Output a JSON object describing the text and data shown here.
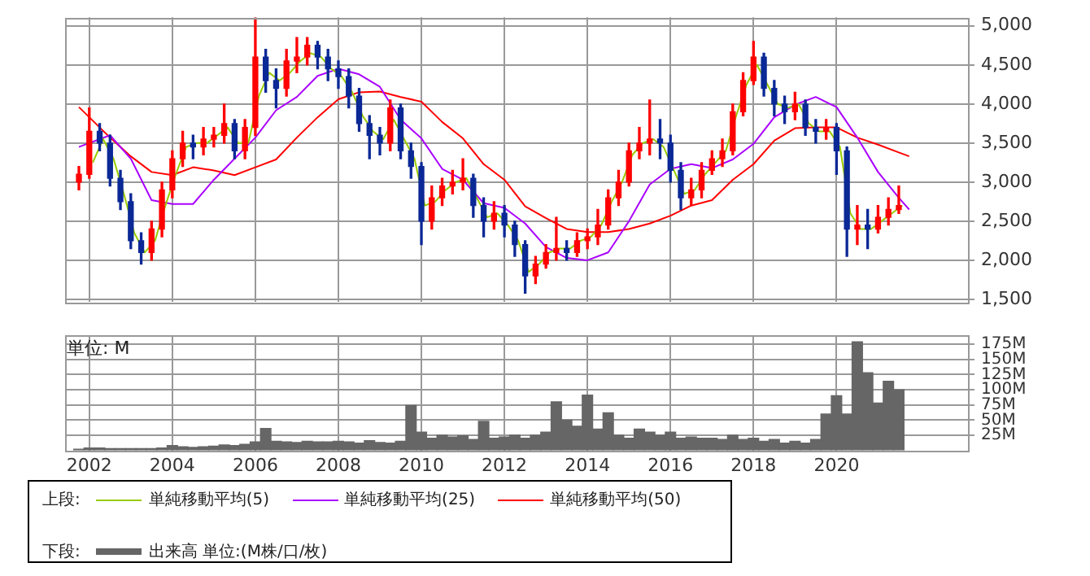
{
  "chart_data": [
    {
      "type": "candlestick",
      "legend_title": "上段:",
      "legend": "bottom",
      "grid": true,
      "tick_labels": "y",
      "marker": "none",
      "xlim": [
        "2001-06",
        "2023-03"
      ],
      "xticks": [
        {
          "value": "2002",
          "label": null
        },
        {
          "value": "2004",
          "label": null
        },
        {
          "value": "2006",
          "label": null
        },
        {
          "value": "2008",
          "label": null
        },
        {
          "value": "2010",
          "label": null
        },
        {
          "value": "2012",
          "label": null
        },
        {
          "value": "2014",
          "label": null
        },
        {
          "value": "2016",
          "label": null
        },
        {
          "value": "2018",
          "label": null
        },
        {
          "value": "2020",
          "label": null
        }
      ],
      "ylim": [
        1470,
        5110
      ],
      "yticks": [
        {
          "value": 1500,
          "label": "1,500"
        },
        {
          "value": 2000,
          "label": "2,000"
        },
        {
          "value": 2500,
          "label": "2,500"
        },
        {
          "value": 3000,
          "label": "3,000"
        },
        {
          "value": 3500,
          "label": "3,500"
        },
        {
          "value": 4000,
          "label": "4,000"
        },
        {
          "value": 4500,
          "label": "4,500"
        },
        {
          "value": 5000,
          "label": "5,000"
        }
      ],
      "series": [
        {
          "type": "candlestick",
          "x": [
            "2001-10",
            "2002-01",
            "2002-04",
            "2002-07",
            "2002-10",
            "2003-01",
            "2003-04",
            "2003-07",
            "2003-10",
            "2004-01",
            "2004-04",
            "2004-07",
            "2004-10",
            "2005-01",
            "2005-04",
            "2005-07",
            "2005-10",
            "2006-01",
            "2006-04",
            "2006-07",
            "2006-10",
            "2007-01",
            "2007-04",
            "2007-07",
            "2007-10",
            "2008-01",
            "2008-04",
            "2008-07",
            "2008-10",
            "2009-01",
            "2009-04",
            "2009-07",
            "2009-10",
            "2010-01",
            "2010-04",
            "2010-07",
            "2010-10",
            "2011-01",
            "2011-04",
            "2011-07",
            "2011-10",
            "2012-01",
            "2012-04",
            "2012-07",
            "2012-10",
            "2013-01",
            "2013-04",
            "2013-07",
            "2013-10",
            "2014-01",
            "2014-04",
            "2014-07",
            "2014-10",
            "2015-01",
            "2015-04",
            "2015-07",
            "2015-10",
            "2016-01",
            "2016-04",
            "2016-07",
            "2016-10",
            "2017-01",
            "2017-04",
            "2017-07",
            "2017-10",
            "2018-01",
            "2018-04",
            "2018-07",
            "2018-10",
            "2019-01",
            "2019-04",
            "2019-07",
            "2019-10",
            "2020-01",
            "2020-04",
            "2020-07",
            "2020-10",
            "2021-01",
            "2021-04",
            "2021-07"
          ],
          "ohlc": [
            [
              3000,
              3200,
              2900,
              3100
            ],
            [
              3100,
              3950,
              3050,
              3650
            ],
            [
              3650,
              3750,
              3400,
              3500
            ],
            [
              3500,
              3600,
              2950,
              3050
            ],
            [
              3050,
              3150,
              2650,
              2750
            ],
            [
              2750,
              2850,
              2150,
              2250
            ],
            [
              2250,
              2350,
              1950,
              2100
            ],
            [
              2100,
              2500,
              2000,
              2400
            ],
            [
              2400,
              3000,
              2300,
              2900
            ],
            [
              2900,
              3400,
              2800,
              3300
            ],
            [
              3300,
              3650,
              3200,
              3500
            ],
            [
              3500,
              3600,
              3300,
              3450
            ],
            [
              3450,
              3700,
              3350,
              3550
            ],
            [
              3550,
              3700,
              3450,
              3600
            ],
            [
              3600,
              4000,
              3500,
              3750
            ],
            [
              3750,
              3800,
              3300,
              3400
            ],
            [
              3400,
              3800,
              3300,
              3700
            ],
            [
              3700,
              5100,
              3600,
              4600
            ],
            [
              4600,
              4700,
              4150,
              4300
            ],
            [
              4300,
              4450,
              3950,
              4200
            ],
            [
              4200,
              4700,
              4100,
              4550
            ],
            [
              4550,
              4850,
              4400,
              4600
            ],
            [
              4600,
              4850,
              4500,
              4750
            ],
            [
              4750,
              4800,
              4450,
              4600
            ],
            [
              4600,
              4700,
              4300,
              4450
            ],
            [
              4450,
              4550,
              4200,
              4350
            ],
            [
              4350,
              4450,
              3950,
              4100
            ],
            [
              4100,
              4200,
              3650,
              3750
            ],
            [
              3750,
              3850,
              3300,
              3600
            ],
            [
              3600,
              3700,
              3350,
              3500
            ],
            [
              3500,
              4050,
              3400,
              3950
            ],
            [
              3950,
              4000,
              3300,
              3400
            ],
            [
              3400,
              3500,
              3050,
              3200
            ],
            [
              3200,
              3250,
              2200,
              2500
            ],
            [
              2500,
              2950,
              2400,
              2800
            ],
            [
              2800,
              3050,
              2700,
              2950
            ],
            [
              2950,
              3150,
              2850,
              3000
            ],
            [
              3000,
              3300,
              2900,
              3050
            ],
            [
              3050,
              3100,
              2550,
              2700
            ],
            [
              2700,
              2800,
              2300,
              2500
            ],
            [
              2500,
              2750,
              2400,
              2600
            ],
            [
              2600,
              2700,
              2300,
              2450
            ],
            [
              2450,
              2500,
              2050,
              2200
            ],
            [
              2200,
              2250,
              1580,
              1800
            ],
            [
              1800,
              2050,
              1700,
              1950
            ],
            [
              1950,
              2200,
              1900,
              2100
            ],
            [
              2100,
              2550,
              2000,
              2150
            ],
            [
              2150,
              2250,
              2000,
              2100
            ],
            [
              2100,
              2350,
              2050,
              2250
            ],
            [
              2250,
              2400,
              2150,
              2300
            ],
            [
              2300,
              2650,
              2200,
              2450
            ],
            [
              2450,
              2900,
              2400,
              2800
            ],
            [
              2800,
              3150,
              2700,
              3000
            ],
            [
              3000,
              3500,
              2950,
              3400
            ],
            [
              3400,
              3700,
              3300,
              3500
            ],
            [
              3500,
              4050,
              3350,
              3550
            ],
            [
              3550,
              3800,
              3300,
              3500
            ],
            [
              3500,
              3600,
              3000,
              3150
            ],
            [
              3150,
              3250,
              2650,
              2800
            ],
            [
              2800,
              3050,
              2700,
              2900
            ],
            [
              2900,
              3250,
              2800,
              3150
            ],
            [
              3150,
              3400,
              3100,
              3300
            ],
            [
              3300,
              3550,
              3200,
              3400
            ],
            [
              3400,
              4000,
              3350,
              3900
            ],
            [
              3900,
              4400,
              3850,
              4300
            ],
            [
              4300,
              4800,
              4250,
              4600
            ],
            [
              4600,
              4650,
              4100,
              4200
            ],
            [
              4200,
              4300,
              3850,
              4000
            ],
            [
              4000,
              4100,
              3750,
              3900
            ],
            [
              3900,
              4150,
              3800,
              4000
            ],
            [
              4000,
              4050,
              3600,
              3700
            ],
            [
              3700,
              3800,
              3500,
              3650
            ],
            [
              3650,
              3800,
              3550,
              3700
            ],
            [
              3700,
              3750,
              3100,
              3400
            ],
            [
              3400,
              3450,
              2050,
              2400
            ],
            [
              2400,
              2700,
              2200,
              2450
            ],
            [
              2450,
              2650,
              2150,
              2400
            ],
            [
              2400,
              2700,
              2350,
              2550
            ],
            [
              2550,
              2800,
              2450,
              2650
            ],
            [
              2650,
              2950,
              2600,
              2700
            ]
          ],
          "colors": [
            "#ff0000",
            "#ff0000",
            "#0a2896",
            "#0a2896",
            "#0a2896",
            "#0a2896",
            "#0a2896",
            "#ff0000",
            "#ff0000",
            "#ff0000",
            "#ff0000",
            "#0a2896",
            "#ff0000",
            "#ff0000",
            "#ff0000",
            "#0a2896",
            "#ff0000",
            "#ff0000",
            "#0a2896",
            "#0a2896",
            "#ff0000",
            "#ff0000",
            "#ff0000",
            "#0a2896",
            "#0a2896",
            "#0a2896",
            "#0a2896",
            "#0a2896",
            "#0a2896",
            "#0a2896",
            "#ff0000",
            "#0a2896",
            "#0a2896",
            "#0a2896",
            "#ff0000",
            "#ff0000",
            "#ff0000",
            "#ff0000",
            "#0a2896",
            "#0a2896",
            "#ff0000",
            "#0a2896",
            "#0a2896",
            "#0a2896",
            "#ff0000",
            "#ff0000",
            "#ff0000",
            "#0a2896",
            "#ff0000",
            "#ff0000",
            "#ff0000",
            "#ff0000",
            "#ff0000",
            "#ff0000",
            "#ff0000",
            "#ff0000",
            "#0a2896",
            "#0a2896",
            "#0a2896",
            "#ff0000",
            "#ff0000",
            "#ff0000",
            "#ff0000",
            "#ff0000",
            "#ff0000",
            "#ff0000",
            "#0a2896",
            "#0a2896",
            "#0a2896",
            "#ff0000",
            "#0a2896",
            "#0a2896",
            "#ff0000",
            "#0a2896",
            "#0a2896",
            "#ff0000",
            "#0a2896",
            "#ff0000",
            "#ff0000",
            "#ff0000"
          ]
        },
        {
          "type": "line",
          "name": "単純移動平均(5)",
          "color": "#99cc00",
          "x": [
            "2002-02",
            "2002-05",
            "2002-08",
            "2002-11",
            "2003-02",
            "2003-05",
            "2003-08",
            "2003-11",
            "2004-02",
            "2004-05",
            "2004-08",
            "2004-11",
            "2005-02",
            "2005-05",
            "2005-08",
            "2005-11",
            "2006-02",
            "2006-05",
            "2006-08",
            "2006-11",
            "2007-02",
            "2007-05",
            "2007-08",
            "2007-11",
            "2008-02",
            "2008-05",
            "2008-08",
            "2008-11",
            "2009-02",
            "2009-05",
            "2009-08",
            "2009-11",
            "2010-02",
            "2010-05",
            "2010-08",
            "2010-11",
            "2011-02",
            "2011-05",
            "2011-08",
            "2011-11",
            "2012-02",
            "2012-05",
            "2012-08",
            "2012-11",
            "2013-02",
            "2013-05",
            "2013-08",
            "2013-11",
            "2014-02",
            "2014-05",
            "2014-08",
            "2014-11",
            "2015-02",
            "2015-05",
            "2015-08",
            "2015-11",
            "2016-02",
            "2016-05",
            "2016-08",
            "2016-11",
            "2017-02",
            "2017-05",
            "2017-08",
            "2017-11",
            "2018-02",
            "2018-05",
            "2018-08",
            "2018-11",
            "2019-02",
            "2019-05",
            "2019-08",
            "2019-11",
            "2020-02",
            "2020-05",
            "2020-08",
            "2020-11",
            "2021-02",
            "2021-05",
            "2021-08"
          ],
          "values": [
            3250,
            3550,
            3300,
            2850,
            2350,
            2100,
            2250,
            2700,
            3100,
            3450,
            3500,
            3500,
            3600,
            3700,
            3500,
            3500,
            4100,
            4400,
            4300,
            4400,
            4550,
            4650,
            4600,
            4450,
            4350,
            4150,
            3850,
            3650,
            3550,
            3800,
            3550,
            3300,
            2700,
            2750,
            2900,
            3000,
            3050,
            2800,
            2550,
            2600,
            2450,
            2250,
            1850,
            1950,
            2100,
            2150,
            2150,
            2250,
            2300,
            2450,
            2750,
            3000,
            3350,
            3500,
            3550,
            3450,
            3150,
            2850,
            2900,
            3100,
            3250,
            3400,
            3850,
            4250,
            4500,
            4250,
            4000,
            3950,
            4000,
            3750,
            3650,
            3650,
            3450,
            2600,
            2400,
            2400,
            2500,
            2600,
            2700
          ]
        },
        {
          "type": "line",
          "name": "単純移動平均(25)",
          "color": "#aa00ff",
          "x": [
            "2001-10",
            "2002-07",
            "2003-01",
            "2003-07",
            "2004-01",
            "2004-07",
            "2005-01",
            "2005-07",
            "2006-01",
            "2006-07",
            "2007-01",
            "2007-07",
            "2008-01",
            "2008-07",
            "2009-01",
            "2009-07",
            "2010-01",
            "2010-07",
            "2011-01",
            "2011-07",
            "2012-01",
            "2012-07",
            "2013-01",
            "2013-07",
            "2014-01",
            "2014-07",
            "2015-01",
            "2015-07",
            "2016-01",
            "2016-07",
            "2017-01",
            "2017-07",
            "2018-01",
            "2018-07",
            "2019-01",
            "2019-07",
            "2020-01",
            "2020-07",
            "2021-01",
            "2021-07",
            "2021-10"
          ],
          "values": [
            3450,
            3600,
            3300,
            2770,
            2720,
            2720,
            3030,
            3300,
            3570,
            3920,
            4090,
            4360,
            4450,
            4380,
            4220,
            3800,
            3560,
            3170,
            3030,
            2730,
            2670,
            2470,
            2170,
            2030,
            2000,
            2100,
            2500,
            2970,
            3170,
            3230,
            3180,
            3290,
            3490,
            3830,
            3990,
            4090,
            3960,
            3570,
            3130,
            2800,
            2650
          ]
        },
        {
          "type": "line",
          "name": "単純移動平均(50)",
          "color": "#ff0000",
          "x": [
            "2001-10",
            "2002-07",
            "2003-01",
            "2003-07",
            "2004-01",
            "2004-07",
            "2005-01",
            "2005-07",
            "2006-01",
            "2006-07",
            "2007-01",
            "2007-07",
            "2008-01",
            "2008-07",
            "2009-01",
            "2009-07",
            "2010-01",
            "2010-07",
            "2011-01",
            "2011-07",
            "2012-01",
            "2012-07",
            "2013-01",
            "2013-07",
            "2014-01",
            "2014-07",
            "2015-01",
            "2015-07",
            "2016-01",
            "2016-07",
            "2017-01",
            "2017-07",
            "2018-01",
            "2018-07",
            "2019-01",
            "2019-07",
            "2020-01",
            "2020-07",
            "2021-01",
            "2021-07",
            "2021-10"
          ],
          "values": [
            3960,
            3570,
            3330,
            3130,
            3090,
            3190,
            3150,
            3090,
            3190,
            3290,
            3570,
            3830,
            4060,
            4150,
            4160,
            4090,
            4030,
            3770,
            3560,
            3230,
            3030,
            2690,
            2540,
            2400,
            2360,
            2360,
            2400,
            2470,
            2570,
            2700,
            2770,
            3030,
            3230,
            3530,
            3690,
            3700,
            3700,
            3570,
            3480,
            3380,
            3330
          ]
        }
      ]
    },
    {
      "type": "bar",
      "legend_title": "下段:",
      "legend": "bottom",
      "grid": true,
      "annotations": [
        "単位: M"
      ],
      "xlim": [
        "2001-06",
        "2023-03"
      ],
      "xticks": [
        {
          "value": "2002",
          "label": "2002"
        },
        {
          "value": "2004",
          "label": "2004"
        },
        {
          "value": "2006",
          "label": "2006"
        },
        {
          "value": "2008",
          "label": "2008"
        },
        {
          "value": "2010",
          "label": "2010"
        },
        {
          "value": "2012",
          "label": "2012"
        },
        {
          "value": "2014",
          "label": "2014"
        },
        {
          "value": "2016",
          "label": "2016"
        },
        {
          "value": "2018",
          "label": "2018"
        },
        {
          "value": "2020",
          "label": "2020"
        }
      ],
      "ylim": [
        0,
        190
      ],
      "yticks": [
        {
          "value": 25,
          "label": "25M"
        },
        {
          "value": 50,
          "label": "50M"
        },
        {
          "value": 75,
          "label": "75M"
        },
        {
          "value": 100,
          "label": "100M"
        },
        {
          "value": 125,
          "label": "125M"
        },
        {
          "value": 150,
          "label": "150M"
        },
        {
          "value": 175,
          "label": "175M"
        }
      ],
      "x": [
        "2001-10",
        "2002-01",
        "2002-04",
        "2002-07",
        "2002-10",
        "2003-01",
        "2003-04",
        "2003-07",
        "2003-10",
        "2004-01",
        "2004-04",
        "2004-07",
        "2004-10",
        "2005-01",
        "2005-04",
        "2005-07",
        "2005-10",
        "2006-01",
        "2006-04",
        "2006-07",
        "2006-10",
        "2007-01",
        "2007-04",
        "2007-07",
        "2007-10",
        "2008-01",
        "2008-04",
        "2008-07",
        "2008-10",
        "2009-01",
        "2009-04",
        "2009-07",
        "2009-10",
        "2010-01",
        "2010-04",
        "2010-07",
        "2010-10",
        "2011-01",
        "2011-04",
        "2011-07",
        "2011-10",
        "2012-01",
        "2012-04",
        "2012-07",
        "2012-10",
        "2013-01",
        "2013-04",
        "2013-07",
        "2013-10",
        "2014-01",
        "2014-04",
        "2014-07",
        "2014-10",
        "2015-01",
        "2015-04",
        "2015-07",
        "2015-10",
        "2016-01",
        "2016-04",
        "2016-07",
        "2016-10",
        "2017-01",
        "2017-04",
        "2017-07",
        "2017-10",
        "2018-01",
        "2018-04",
        "2018-07",
        "2018-10",
        "2019-01",
        "2019-04",
        "2019-07",
        "2019-10",
        "2020-01",
        "2020-04",
        "2020-07",
        "2020-10",
        "2021-01",
        "2021-04",
        "2021-07"
      ],
      "series": [
        {
          "type": "bar",
          "name": "出来高 単位:(M株/口/枚)",
          "color": "#666666",
          "values": [
            2,
            4,
            4,
            3,
            3,
            3,
            3,
            3,
            4,
            8,
            6,
            5,
            6,
            7,
            9,
            8,
            10,
            14,
            36,
            15,
            14,
            13,
            15,
            14,
            14,
            15,
            14,
            12,
            16,
            13,
            12,
            15,
            74,
            30,
            20,
            25,
            22,
            24,
            18,
            48,
            20,
            22,
            25,
            20,
            25,
            30,
            80,
            50,
            40,
            91,
            35,
            62,
            25,
            20,
            35,
            30,
            25,
            30,
            20,
            22,
            20,
            20,
            18,
            25,
            18,
            20,
            15,
            18,
            12,
            15,
            12,
            18,
            60,
            90,
            60,
            179,
            128,
            78,
            114,
            100
          ]
        }
      ]
    }
  ]
}
